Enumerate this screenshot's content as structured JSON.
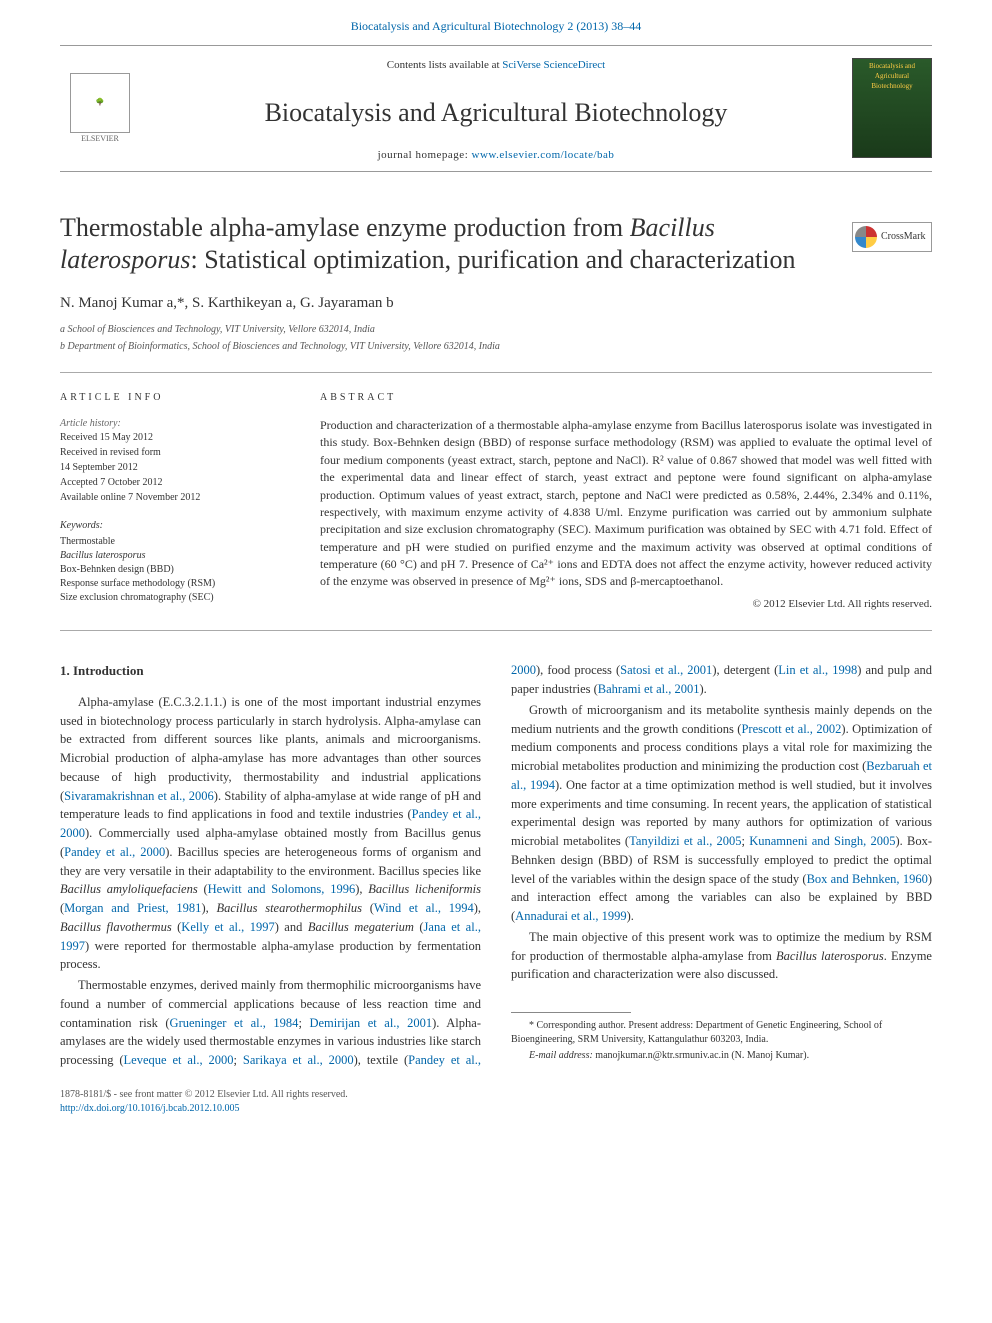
{
  "top": {
    "journal_ref": "Biocatalysis and Agricultural Biotechnology 2 (2013) 38–44",
    "contents_prefix": "Contents lists available at ",
    "contents_link": "SciVerse ScienceDirect",
    "journal_name": "Biocatalysis and Agricultural Biotechnology",
    "homepage_prefix": "journal homepage: ",
    "homepage_link": "www.elsevier.com/locate/bab",
    "elsevier": "ELSEVIER",
    "cover_text": "Biocatalysis and Agricultural Biotechnology"
  },
  "crossmark": {
    "label": "CrossMark"
  },
  "title": {
    "line1": "Thermostable alpha-amylase enzyme production from ",
    "italic": "Bacillus laterosporus",
    "line2": ": Statistical optimization, purification and characterization"
  },
  "authors": "N. Manoj Kumar a,*, S. Karthikeyan a, G. Jayaraman b",
  "affiliations": [
    "a School of Biosciences and Technology, VIT University, Vellore 632014, India",
    "b Department of Bioinformatics, School of Biosciences and Technology, VIT University, Vellore 632014, India"
  ],
  "article_info": {
    "heading": "ARTICLE INFO",
    "history_label": "Article history:",
    "history": [
      "Received 15 May 2012",
      "Received in revised form",
      "14 September 2012",
      "Accepted 7 October 2012",
      "Available online 7 November 2012"
    ],
    "keywords_label": "Keywords:",
    "keywords": [
      "Thermostable",
      "Bacillus laterosporus",
      "Box-Behnken design (BBD)",
      "Response surface methodology (RSM)",
      "Size exclusion chromatography (SEC)"
    ]
  },
  "abstract": {
    "heading": "ABSTRACT",
    "text": "Production and characterization of a thermostable alpha-amylase enzyme from Bacillus laterosporus isolate was investigated in this study. Box-Behnken design (BBD) of response surface methodology (RSM) was applied to evaluate the optimal level of four medium components (yeast extract, starch, peptone and NaCl). R² value of 0.867 showed that model was well fitted with the experimental data and linear effect of starch, yeast extract and peptone were found significant on alpha-amylase production. Optimum values of yeast extract, starch, peptone and NaCl were predicted as 0.58%, 2.44%, 2.34% and 0.11%, respectively, with maximum enzyme activity of 4.838 U/ml. Enzyme purification was carried out by ammonium sulphate precipitation and size exclusion chromatography (SEC). Maximum purification was obtained by SEC with 4.71 fold. Effect of temperature and pH were studied on purified enzyme and the maximum activity was observed at optimal conditions of temperature (60 °C) and pH 7. Presence of Ca²⁺ ions and EDTA does not affect the enzyme activity, however reduced activity of the enzyme was observed in presence of Mg²⁺ ions, SDS and β-mercaptoethanol.",
    "copyright": "© 2012 Elsevier Ltd. All rights reserved."
  },
  "section1": {
    "heading": "1. Introduction",
    "p1_a": "Alpha-amylase (E.C.3.2.1.1.) is one of the most important industrial enzymes used in biotechnology process particularly in starch hydrolysis. Alpha-amylase can be extracted from different sources like plants, animals and microorganisms. Microbial production of alpha-amylase has more advantages than other sources because of high productivity, thermostability and industrial applications (",
    "p1_link1": "Sivaramakrishnan et al., 2006",
    "p1_b": "). Stability of alpha-amylase at wide range of pH and temperature leads to find applications in food and textile industries (",
    "p1_link2": "Pandey et al., 2000",
    "p1_c": "). Commercially used alpha-amylase obtained mostly from Bacillus genus (",
    "p1_link3": "Pandey et al., 2000",
    "p1_d": "). Bacillus species are heterogeneous forms of organism and they are very versatile in their adaptability to the environment. Bacillus species like ",
    "p1_it1": "Bacillus amyloliquefaciens",
    "p1_e": " (",
    "p1_link4": "Hewitt and Solomons, 1996",
    "p1_f": "), ",
    "p1_it2": "Bacillus licheniformis",
    "p1_g": " (",
    "p1_link5": "Morgan and Priest, 1981",
    "p1_h": "), ",
    "p1_it3": "Bacillus stearothermophilus",
    "p1_i": " (",
    "p1_link6": "Wind et al., 1994",
    "p1_j": "), ",
    "p1_it4": "Bacillus flavothermus",
    "p1_k": " (",
    "p1_link7": "Kelly et al., 1997",
    "p1_l": ") and ",
    "p1_it5": "Bacillus megaterium",
    "p1_m": " (",
    "p1_link8": "Jana et al., 1997",
    "p1_n": ") were reported for thermostable alpha-amylase production by fermentation process.",
    "p2_a": "Thermostable enzymes, derived mainly from thermophilic microorganisms have found a number of commercial applications because of less reaction time and contamination risk (",
    "p2_link1": "Grueninger et al., 1984",
    "p2_b": "; ",
    "p2_link2": "Demirijan et al., 2001",
    "p2_c": "). Alpha-amylases are the widely used thermostable enzymes in various industries like starch processing (",
    "p2_link3": "Leveque et al., 2000",
    "p2_d": "; ",
    "p2_link4": "Sarikaya et al., 2000",
    "p2_e": "), textile (",
    "p2_link5": "Pandey et al., 2000",
    "p2_f": "), food process (",
    "p2_link6": "Satosi et al., 2001",
    "p2_g": "), detergent (",
    "p2_link7": "Lin et al., 1998",
    "p2_h": ") and pulp and paper industries (",
    "p2_link8": "Bahrami et al., 2001",
    "p2_i": ").",
    "p3_a": "Growth of microorganism and its metabolite synthesis mainly depends on the medium nutrients and the growth conditions (",
    "p3_link1": "Prescott et al., 2002",
    "p3_b": "). Optimization of medium components and process conditions plays a vital role for maximizing the microbial metabolites production and minimizing the production cost (",
    "p3_link2": "Bezbaruah et al., 1994",
    "p3_c": "). One factor at a time optimization method is well studied, but it involves more experiments and time consuming. In recent years, the application of statistical experimental design was reported by many authors for optimization of various microbial metabolites (",
    "p3_link3": "Tanyildizi et al., 2005",
    "p3_d": "; ",
    "p3_link4": "Kunamneni and Singh, 2005",
    "p3_e": "). Box-Behnken design (BBD) of RSM is successfully employed to predict the optimal level of the variables within the design space of the study (",
    "p3_link5": "Box and Behnken, 1960",
    "p3_f": ") and interaction effect among the variables can also be explained by BBD (",
    "p3_link6": "Annadurai et al., 1999",
    "p3_g": ").",
    "p4_a": "The main objective of this present work was to optimize the medium by RSM for production of thermostable alpha-amylase from ",
    "p4_it": "Bacillus laterosporus",
    "p4_b": ". Enzyme purification and characterization were also discussed."
  },
  "footnote": {
    "corr": "* Corresponding author. Present address: Department of Genetic Engineering, School of Bioengineering, SRM University, Kattangulathur 603203, India.",
    "email_label": "E-mail address:",
    "email": " manojkumar.n@ktr.srmuniv.ac.in (N. Manoj Kumar)."
  },
  "footer": {
    "issn": "1878-8181/$ - see front matter © 2012 Elsevier Ltd. All rights reserved.",
    "doi": "http://dx.doi.org/10.1016/j.bcab.2012.10.005"
  },
  "colors": {
    "link": "#0066aa",
    "text": "#333333",
    "rule": "#aaaaaa",
    "cover_bg": "#2a5a2a",
    "cover_fg": "#ffcc44"
  }
}
